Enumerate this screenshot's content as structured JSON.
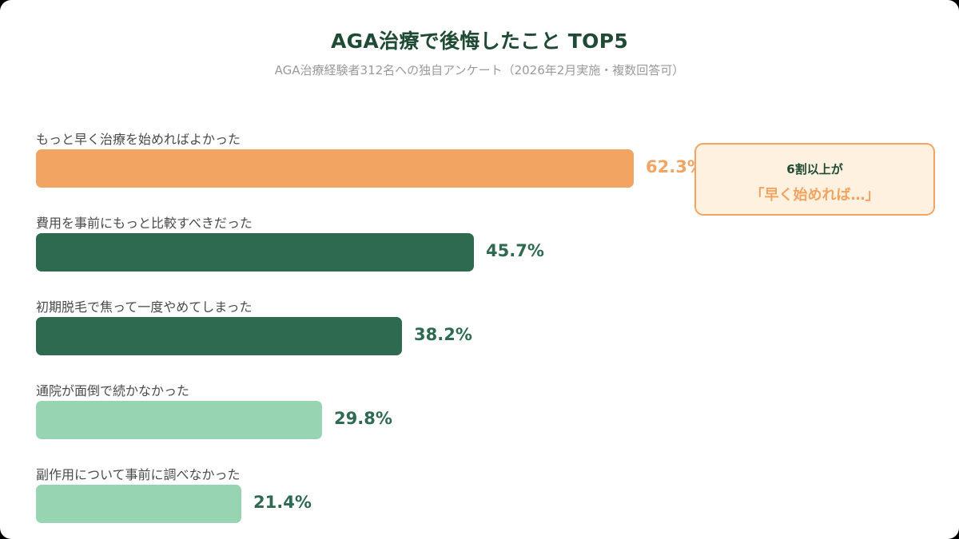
{
  "header": {
    "title": "AGA治療で後悔したこと TOP5",
    "subtitle": "AGA治療経験者312名への独自アンケート（2026年2月実施・複数回答可）"
  },
  "callout": {
    "line1": "6割以上が",
    "line2": "「早く始めれば…」",
    "bg_color": "#fff1e0",
    "border_color": "#f2a462"
  },
  "colors": {
    "highlight": "#f2a462",
    "dark_green": "#2e6a50",
    "light_green": "#96d4b2",
    "value_dark": "#2e6a50",
    "title": "#1f4a33"
  },
  "chart_data": {
    "type": "bar",
    "orientation": "horizontal",
    "title": "AGA治療で後悔したこと TOP5",
    "subtitle": "AGA治療経験者312名への独自アンケート（2026年2月実施・複数回答可）",
    "categories": [
      "もっと早く治療を始めればよかった",
      "費用を事前にもっと比較すべきだった",
      "初期脱毛で焦って一度やめてしまった",
      "通院が面倒で続かなかった",
      "副作用について事前に調べなかった"
    ],
    "values": [
      62.3,
      45.7,
      38.2,
      29.8,
      21.4
    ],
    "value_labels": [
      "62.3%",
      "45.7%",
      "38.2%",
      "29.8%",
      "21.4%"
    ],
    "bar_colors": [
      "#f2a462",
      "#2e6a50",
      "#2e6a50",
      "#96d4b2",
      "#96d4b2"
    ],
    "label_colors": [
      "#f2a462",
      "#2e6a50",
      "#2e6a50",
      "#2e6a50",
      "#2e6a50"
    ],
    "unit": "%",
    "xlim": [
      0,
      100
    ],
    "grid": false,
    "legend": "none",
    "annotations": [
      "6割以上が「早く始めれば…」"
    ]
  }
}
